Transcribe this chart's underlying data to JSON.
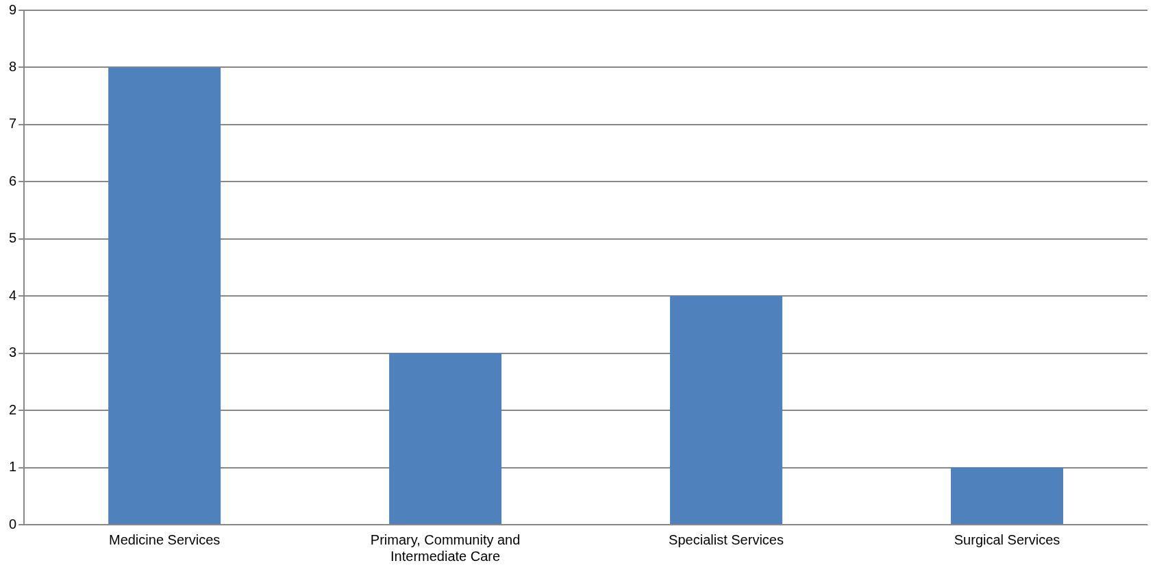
{
  "chart_data": {
    "type": "bar",
    "categories": [
      "Medicine Services",
      "Primary, Community and Intermediate Care",
      "Specialist Services",
      "Surgical Services"
    ],
    "values": [
      8,
      3,
      4,
      1
    ],
    "color": "#4f81bd",
    "ylim": [
      0,
      9
    ],
    "yticks": [
      0,
      1,
      2,
      3,
      4,
      5,
      6,
      7,
      8,
      9
    ],
    "grid": "y",
    "legend": false
  }
}
